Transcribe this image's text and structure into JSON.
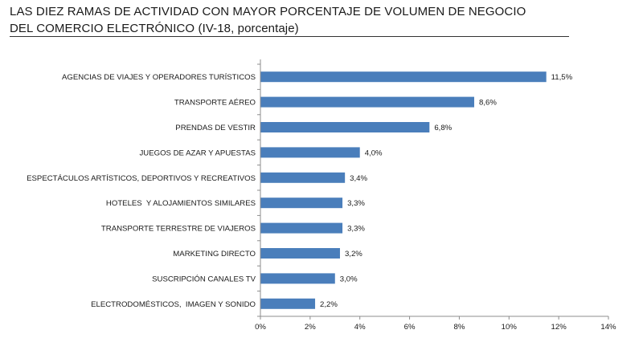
{
  "title_lines": [
    "LAS DIEZ RAMAS DE ACTIVIDAD CON MAYOR PORCENTAJE DE VOLUMEN DE NEGOCIO",
    "DEL COMERCIO ELECTRÓNICO (IV-18, porcentaje)"
  ],
  "chart_data": {
    "type": "bar",
    "orientation": "horizontal",
    "title": "LAS DIEZ RAMAS DE ACTIVIDAD CON MAYOR PORCENTAJE DE VOLUMEN DE NEGOCIO DEL COMERCIO ELECTRÓNICO (IV-18, porcentaje)",
    "categories": [
      "AGENCIAS DE VIAJES Y OPERADORES TURÍSTICOS",
      "TRANSPORTE AÉREO",
      "PRENDAS DE VESTIR",
      "JUEGOS DE AZAR Y APUESTAS",
      "ESPECTÁCULOS ARTÍSTICOS, DEPORTIVOS Y RECREATIVOS",
      "HOTELES  Y ALOJAMIENTOS SIMILARES",
      "TRANSPORTE TERRESTRE DE VIAJEROS",
      "MARKETING DIRECTO",
      "SUSCRIPCIÓN CANALES TV",
      "ELECTRODOMÉSTICOS,  IMAGEN Y SONIDO"
    ],
    "values": [
      11.5,
      8.6,
      6.8,
      4.0,
      3.4,
      3.3,
      3.3,
      3.2,
      3.0,
      2.2
    ],
    "value_labels": [
      "11,5%",
      "8,6%",
      "6,8%",
      "4,0%",
      "3,4%",
      "3,3%",
      "3,3%",
      "3,2%",
      "3,0%",
      "2,2%"
    ],
    "x_ticks": [
      0,
      2,
      4,
      6,
      8,
      10,
      12,
      14
    ],
    "x_tick_labels": [
      "0%",
      "2%",
      "4%",
      "6%",
      "8%",
      "10%",
      "12%",
      "14%"
    ],
    "xlim": [
      0,
      14
    ],
    "xlabel": "",
    "ylabel": "",
    "grid": false,
    "legend": "none",
    "bar_color": "#4a7ebb"
  }
}
